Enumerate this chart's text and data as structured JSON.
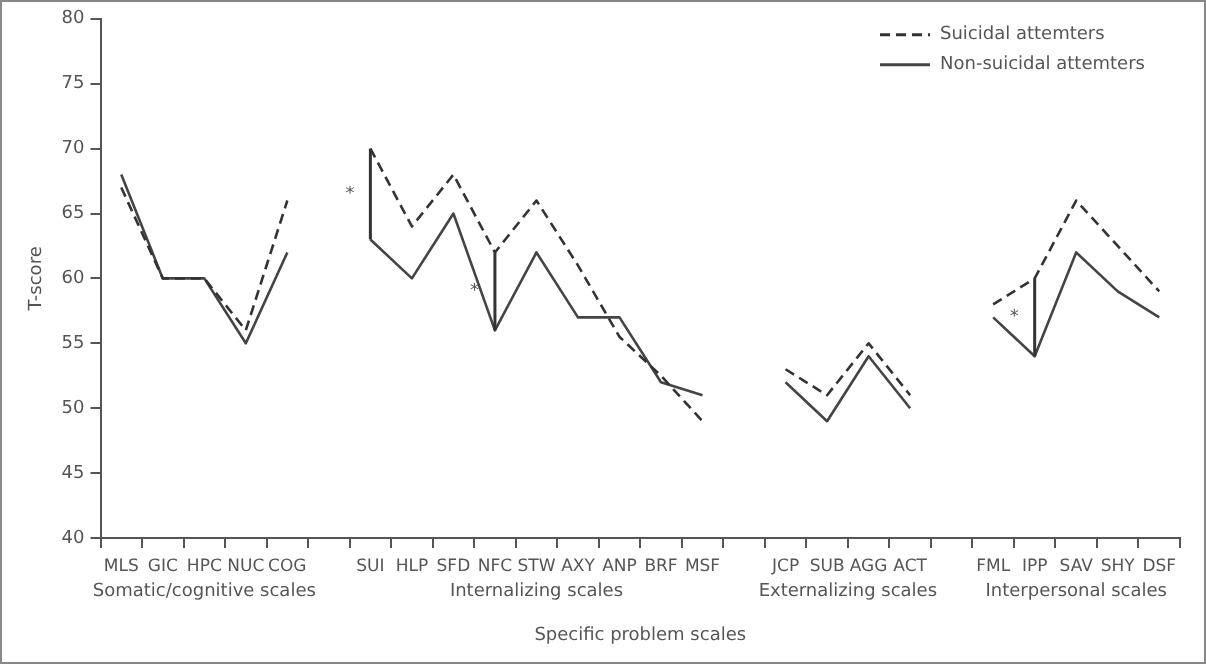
{
  "chart_data": {
    "type": "line",
    "xlabel": "Specific problem scales",
    "ylabel": "T-score",
    "categories": [
      "MLS",
      "GIC",
      "HPC",
      "NUC",
      "COG",
      null,
      "SUI",
      "HLP",
      "SFD",
      "NFC",
      "STW",
      "AXY",
      "ANP",
      "BRF",
      "MSF",
      null,
      "JCP",
      "SUB",
      "AGG",
      "ACT",
      null,
      "FML",
      "IPP",
      "SAV",
      "SHY",
      "DSF"
    ],
    "series": [
      {
        "name": "Suicidal attemters",
        "color": "#333333",
        "line_style": "dashed",
        "values": [
          67,
          60,
          60,
          56,
          66,
          null,
          70,
          64,
          68,
          62,
          66,
          61,
          55.5,
          52.5,
          49,
          null,
          53,
          51,
          55,
          51,
          null,
          58,
          60,
          66,
          62.5,
          59
        ]
      },
      {
        "name": "Non-suicidal attemters",
        "color": "#444444",
        "line_style": "solid",
        "values": [
          68,
          60,
          60,
          55,
          62,
          null,
          63,
          60,
          65,
          56,
          62,
          57,
          57,
          52,
          51,
          null,
          52,
          49,
          54,
          50,
          null,
          57,
          54,
          62,
          59,
          57
        ]
      }
    ],
    "ylim": [
      40,
      80
    ],
    "yticks": [
      40,
      45,
      50,
      55,
      60,
      65,
      70,
      75,
      80
    ],
    "grid": false,
    "legend": "top right",
    "marker": "none",
    "annotations": [
      "Somatic/cognitive scales",
      "Internalizing scales",
      "Externalizing scales",
      "Interpersonal scales",
      "*",
      "*",
      "*"
    ]
  }
}
